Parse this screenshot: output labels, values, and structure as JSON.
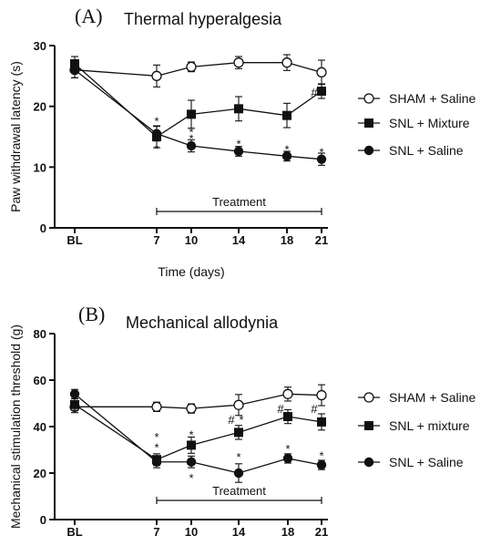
{
  "chart_data": [
    {
      "type": "line",
      "panel_label": "(A)",
      "title": "Thermal hyperalgesia",
      "xlabel": "Time (days)",
      "ylabel": "Paw withdrawal latency (s)",
      "categories": [
        "BL",
        "7",
        "10",
        "14",
        "18",
        "21"
      ],
      "ylim": [
        0,
        30
      ],
      "yticks": [
        0,
        10,
        20,
        30
      ],
      "legend_position": "right",
      "treatment_label": "Treatment",
      "treatment_span": [
        "7",
        "21"
      ],
      "series": [
        {
          "name": "SHAM + Saline",
          "marker": "open-circle",
          "values": [
            26.0,
            25.0,
            26.5,
            27.2,
            27.2,
            25.6
          ],
          "errors": [
            1.3,
            1.8,
            0.8,
            1.0,
            1.3,
            2.0
          ]
        },
        {
          "name": "SNL + Mixture",
          "marker": "filled-square",
          "values": [
            27.0,
            15.0,
            18.7,
            19.6,
            18.5,
            22.5
          ],
          "errors": [
            1.2,
            1.8,
            2.3,
            2.0,
            2.0,
            1.2
          ]
        },
        {
          "name": "SNL + Saline",
          "marker": "filled-circle",
          "values": [
            26.0,
            15.5,
            13.5,
            12.6,
            11.8,
            11.3
          ],
          "errors": [
            1.3,
            1.2,
            1.0,
            0.8,
            0.8,
            1.0
          ]
        }
      ],
      "annotations": [
        {
          "text": "*",
          "x": "7",
          "y": 17.8
        },
        {
          "text": "*",
          "x": "7",
          "y": 13.2
        },
        {
          "text": "*",
          "x": "10",
          "y": 16.0
        },
        {
          "text": "*",
          "x": "10",
          "y": 14.9
        },
        {
          "text": "*",
          "x": "14",
          "y": 14.0
        },
        {
          "text": "*",
          "x": "18",
          "y": 13.1
        },
        {
          "text": "*",
          "x": "21",
          "y": 12.7
        },
        {
          "text": "#",
          "x": "21",
          "y": 22.5
        }
      ]
    },
    {
      "type": "line",
      "panel_label": "(B)",
      "title": "Mechanical allodynia",
      "xlabel": "",
      "ylabel": "Mechanical stimulation threshold (g)",
      "categories": [
        "BL",
        "7",
        "10",
        "14",
        "18",
        "21"
      ],
      "ylim": [
        0,
        80
      ],
      "yticks": [
        0,
        20,
        40,
        60,
        80
      ],
      "legend_position": "right",
      "treatment_label": "Treatment",
      "treatment_span": [
        "7",
        "21"
      ],
      "series": [
        {
          "name": "SHAM + Saline",
          "marker": "open-circle",
          "values": [
            48.5,
            48.5,
            47.8,
            49.3,
            54.0,
            53.5
          ],
          "errors": [
            2.5,
            2.0,
            2.0,
            4.5,
            3.0,
            4.5
          ]
        },
        {
          "name": "SNL + mixture",
          "marker": "filled-square",
          "values": [
            49.5,
            25.8,
            32.0,
            37.5,
            44.3,
            42.0
          ],
          "errors": [
            2.5,
            2.5,
            3.5,
            3.0,
            3.0,
            3.5
          ]
        },
        {
          "name": "SNL + Saline",
          "marker": "filled-circle",
          "values": [
            54.0,
            24.8,
            24.8,
            20.0,
            26.3,
            23.5
          ],
          "errors": [
            2.0,
            2.5,
            2.5,
            4.0,
            2.0,
            2.0
          ]
        }
      ],
      "annotations": [
        {
          "text": "*",
          "x": "7",
          "y": 36.0
        },
        {
          "text": "*",
          "x": "7",
          "y": 31.5
        },
        {
          "text": "*",
          "x": "10",
          "y": 37.0
        },
        {
          "text": "*",
          "x": "10",
          "y": 18.5
        },
        {
          "text": "#",
          "x": "14",
          "y": 43.5
        },
        {
          "text": "*",
          "x": "14",
          "y": 43.5
        },
        {
          "text": "*",
          "x": "14",
          "y": 27.5
        },
        {
          "text": "#",
          "x": "18",
          "y": 48.3
        },
        {
          "text": "*",
          "x": "18",
          "y": 31.0
        },
        {
          "text": "#",
          "x": "21",
          "y": 48.3
        },
        {
          "text": "*",
          "x": "21",
          "y": 28.0
        }
      ]
    }
  ]
}
